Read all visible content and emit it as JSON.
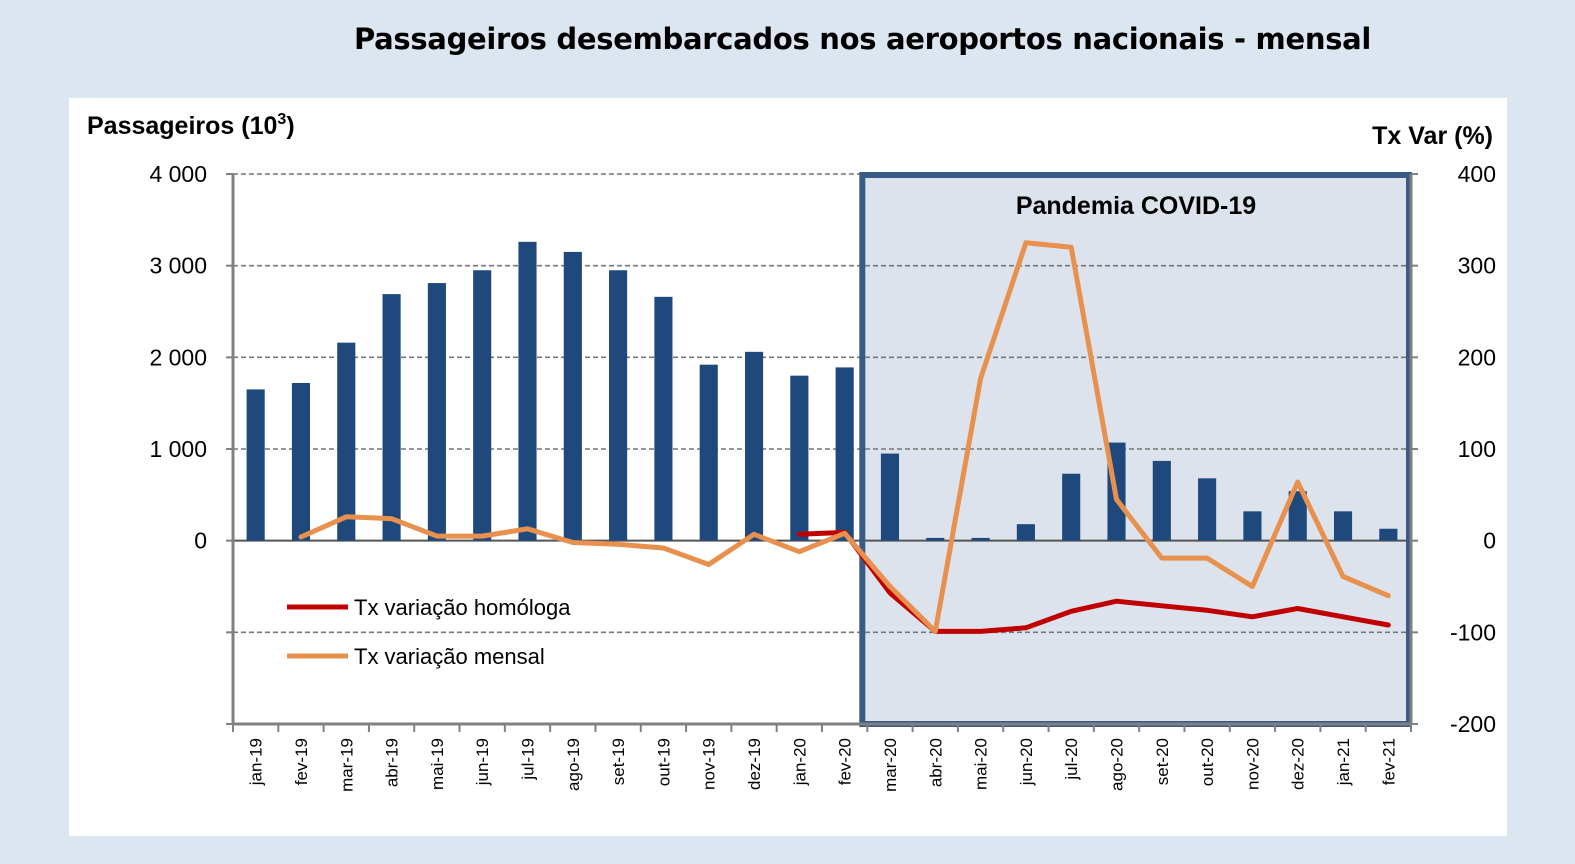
{
  "chart_data": {
    "type": "bar",
    "title": "Passageiros desembarcados nos aeroportos nacionais - mensal",
    "ylabel_left": "Passageiros (10",
    "ylabel_left_sup": "3",
    "ylabel_left_close": ")",
    "ylabel_right": "Tx Var (%)",
    "ylim_left": [
      -2000,
      4000
    ],
    "ylim_right": [
      -200,
      400
    ],
    "yticks_left": [
      "4 000",
      "3 000",
      "2 000",
      "1 000",
      "0"
    ],
    "yticks_right": [
      "400",
      "300",
      "200",
      "100",
      "0",
      "-100",
      "-200"
    ],
    "grid": true,
    "categories": [
      "jan-19",
      "fev-19",
      "mar-19",
      "abr-19",
      "mai-19",
      "jun-19",
      "jul-19",
      "ago-19",
      "set-19",
      "out-19",
      "nov-19",
      "dez-19",
      "jan-20",
      "fev-20",
      "mar-20",
      "abr-20",
      "mai-20",
      "jun-20",
      "jul-20",
      "ago-20",
      "set-20",
      "out-20",
      "nov-20",
      "dez-20",
      "jan-21",
      "fev-21"
    ],
    "bar_series": {
      "name": "Passageiros",
      "color": "#1f497d",
      "values": [
        1650,
        1720,
        2160,
        2690,
        2810,
        2950,
        3260,
        3150,
        2950,
        2660,
        1920,
        2060,
        1800,
        1890,
        950,
        30,
        30,
        180,
        730,
        1070,
        870,
        680,
        320,
        540,
        320,
        130
      ]
    },
    "series": [
      {
        "name": "Tx variação homóloga",
        "color": "#c00000",
        "values": [
          null,
          null,
          null,
          null,
          null,
          null,
          null,
          null,
          null,
          null,
          null,
          null,
          7,
          9,
          -57,
          -99,
          -99,
          -95,
          -77,
          -66,
          -71,
          -76,
          -83,
          -74,
          -83,
          -92
        ]
      },
      {
        "name": "Tx variação mensal",
        "color": "#e8914f",
        "values": [
          null,
          4,
          26,
          24,
          5,
          5,
          13,
          -2,
          -4,
          -8,
          -26,
          7,
          -12,
          8,
          -50,
          -99,
          177,
          325,
          320,
          45,
          -19,
          -19,
          -50,
          64,
          -39,
          -60
        ]
      }
    ],
    "annotation": {
      "label": "Pandemia COVID-19",
      "from_category": "mar-20",
      "to_category": "fev-21",
      "fill": "#dce3ec",
      "border": "#3a5a88"
    },
    "legend_position": "bottom-left"
  }
}
